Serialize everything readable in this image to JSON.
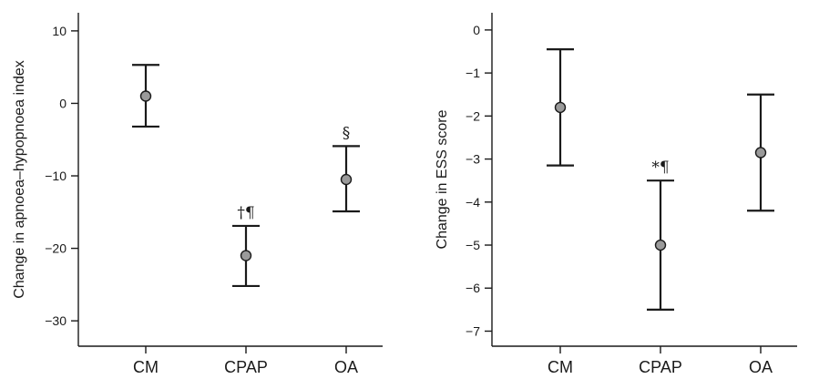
{
  "chart_data": [
    {
      "type": "errorbar",
      "title": "",
      "xlabel": "",
      "ylabel": "Change in apnoea–hypopnoea index",
      "categories": [
        "CM",
        "CPAP",
        "OA"
      ],
      "yticks": [
        10,
        0,
        -10,
        -20,
        -30
      ],
      "ylim": [
        -33.5,
        12.5
      ],
      "series": [
        {
          "values": [
            1.0,
            -21.0,
            -10.5
          ],
          "lower": [
            -3.2,
            -25.2,
            -14.9
          ],
          "upper": [
            5.3,
            -16.9,
            -5.9
          ]
        }
      ],
      "annotations": [
        "",
        "†¶",
        "§"
      ]
    },
    {
      "type": "errorbar",
      "title": "",
      "xlabel": "",
      "ylabel": "Change in ESS score",
      "categories": [
        "CM",
        "CPAP",
        "OA"
      ],
      "yticks": [
        0,
        -1,
        -2,
        -3,
        -4,
        -5,
        -6,
        -7
      ],
      "ylim": [
        -7.35,
        0.4
      ],
      "series": [
        {
          "values": [
            -1.8,
            -5.0,
            -2.85
          ],
          "lower": [
            -3.15,
            -6.5,
            -4.2
          ],
          "upper": [
            -0.45,
            -3.5,
            -1.5
          ]
        }
      ],
      "annotations": [
        "",
        "*¶",
        ""
      ]
    }
  ]
}
